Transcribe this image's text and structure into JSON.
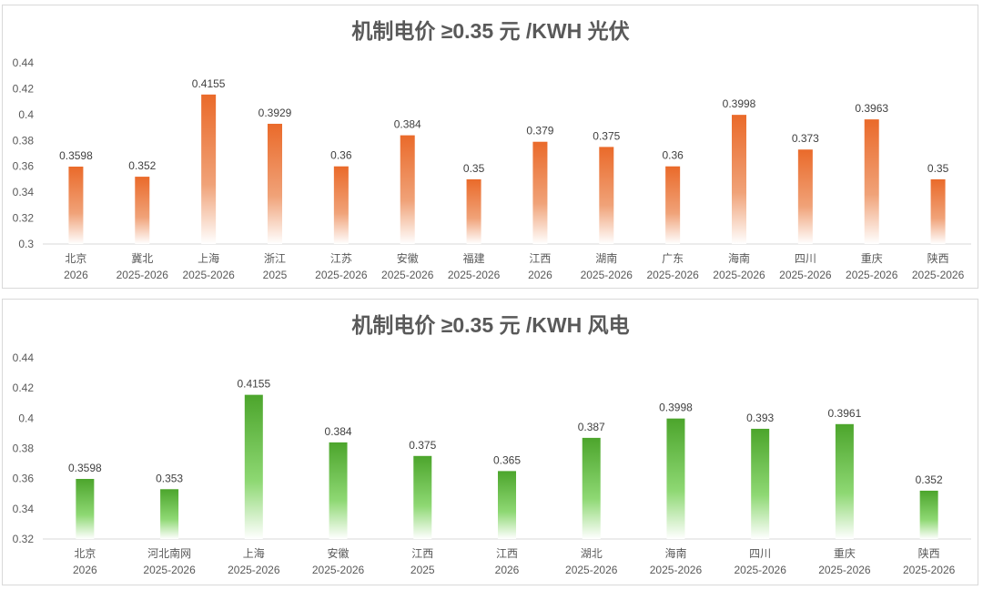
{
  "chart_data": [
    {
      "type": "bar",
      "title": "机制电价 ≥0.35 元 /KWH 光伏",
      "categories": [
        [
          "北京",
          "2026"
        ],
        [
          "冀北",
          "2025-2026"
        ],
        [
          "上海",
          "2025-2026"
        ],
        [
          "浙江",
          "2025"
        ],
        [
          "江苏",
          "2025-2026"
        ],
        [
          "安徽",
          "2025-2026"
        ],
        [
          "福建",
          "2025-2026"
        ],
        [
          "江西",
          "2026"
        ],
        [
          "湖南",
          "2025-2026"
        ],
        [
          "广东",
          "2025-2026"
        ],
        [
          "海南",
          "2025-2026"
        ],
        [
          "四川",
          "2025-2026"
        ],
        [
          "重庆",
          "2025-2026"
        ],
        [
          "陕西",
          "2025-2026"
        ]
      ],
      "values": [
        0.3598,
        0.352,
        0.4155,
        0.3929,
        0.36,
        0.384,
        0.35,
        0.379,
        0.375,
        0.36,
        0.3998,
        0.373,
        0.3963,
        0.35
      ],
      "data_labels": [
        "0.3598",
        "0.352",
        "0.4155",
        "0.3929",
        "0.36",
        "0.384",
        "0.35",
        "0.379",
        "0.375",
        "0.36",
        "0.3998",
        "0.373",
        "0.3963",
        "0.35"
      ],
      "yticks": [
        "0.3",
        "0.32",
        "0.34",
        "0.36",
        "0.38",
        "0.4",
        "0.42",
        "0.44"
      ],
      "ylim": [
        0.3,
        0.44
      ],
      "grid": false,
      "color": "#ED7031",
      "xlabel": "",
      "ylabel": ""
    },
    {
      "type": "bar",
      "title": "机制电价 ≥0.35 元 /KWH 风电",
      "categories": [
        [
          "北京",
          "2026"
        ],
        [
          "河北南网",
          "2025-2026"
        ],
        [
          "上海",
          "2025-2026"
        ],
        [
          "安徽",
          "2025-2026"
        ],
        [
          "江西",
          "2025"
        ],
        [
          "江西",
          "2026"
        ],
        [
          "湖北",
          "2025-2026"
        ],
        [
          "海南",
          "2025-2026"
        ],
        [
          "四川",
          "2025-2026"
        ],
        [
          "重庆",
          "2025-2026"
        ],
        [
          "陕西",
          "2025-2026"
        ]
      ],
      "values": [
        0.3598,
        0.353,
        0.4155,
        0.384,
        0.375,
        0.365,
        0.387,
        0.3998,
        0.393,
        0.3961,
        0.352
      ],
      "data_labels": [
        "0.3598",
        "0.353",
        "0.4155",
        "0.384",
        "0.375",
        "0.365",
        "0.387",
        "0.3998",
        "0.393",
        "0.3961",
        "0.352"
      ],
      "yticks": [
        "0.32",
        "0.34",
        "0.36",
        "0.38",
        "0.4",
        "0.42",
        "0.44"
      ],
      "ylim": [
        0.32,
        0.44
      ],
      "grid": false,
      "color": "#4EA72E",
      "xlabel": "",
      "ylabel": ""
    }
  ]
}
